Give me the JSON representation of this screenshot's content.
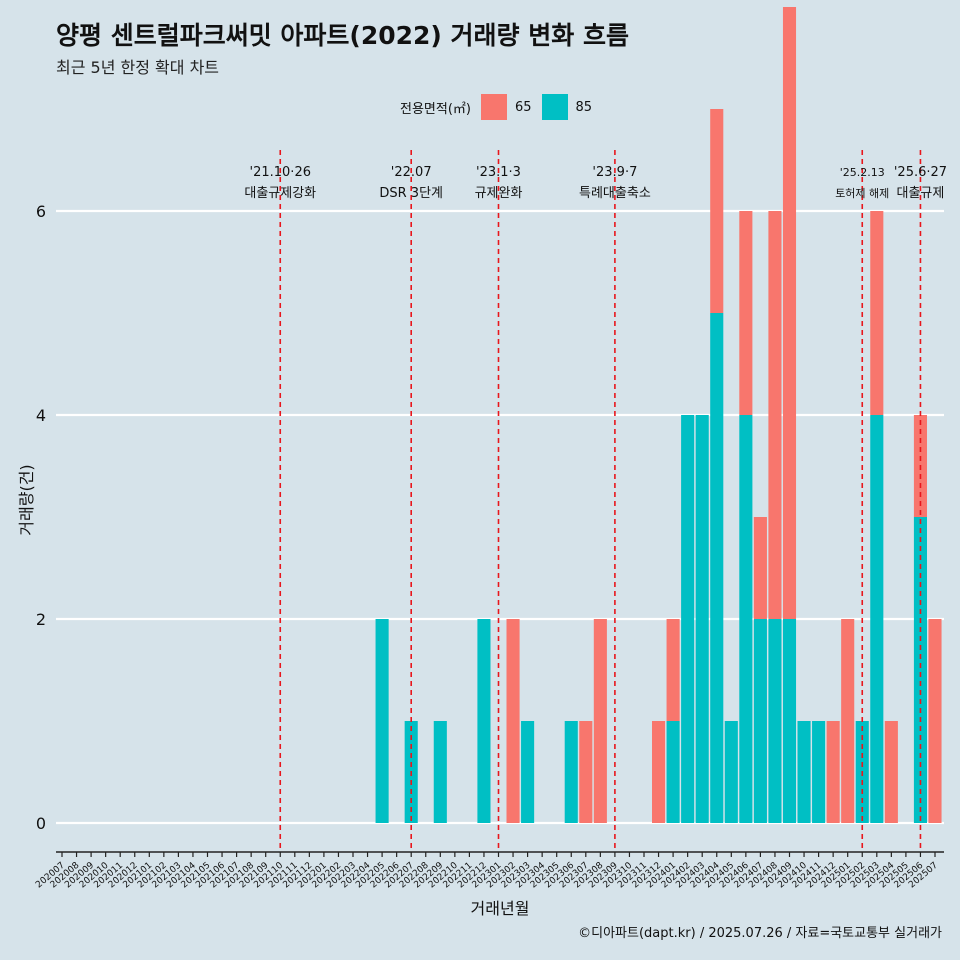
{
  "title": "양평 센트럴파크써밋 아파트(2022) 거래량 변화 흐름",
  "subtitle": "최근 5년 한정 확대 차트",
  "caption": "©디아파트(dapt.kr) / 2025.07.26 / 자료=국토교통부 실거래가",
  "legend": {
    "title": "전용면적(㎡)",
    "items": [
      {
        "name": "65",
        "color": "#f8766d"
      },
      {
        "name": "85",
        "color": "#00bfc4"
      }
    ]
  },
  "chart_data": {
    "type": "bar",
    "xlabel": "거래년월",
    "ylabel": "거래량(건)",
    "ylim": [
      0,
      6
    ],
    "yticks": [
      0,
      2,
      4,
      6
    ],
    "grid": true,
    "categories": [
      "202007",
      "202008",
      "202009",
      "202010",
      "202011",
      "202012",
      "202101",
      "202102",
      "202103",
      "202104",
      "202105",
      "202106",
      "202107",
      "202108",
      "202109",
      "202110",
      "202111",
      "202112",
      "202201",
      "202202",
      "202203",
      "202204",
      "202205",
      "202206",
      "202207",
      "202208",
      "202209",
      "202210",
      "202211",
      "202212",
      "202301",
      "202302",
      "202303",
      "202304",
      "202305",
      "202306",
      "202307",
      "202308",
      "202309",
      "202310",
      "202311",
      "202312",
      "202401",
      "202402",
      "202403",
      "202404",
      "202405",
      "202406",
      "202407",
      "202408",
      "202409",
      "202410",
      "202411",
      "202412",
      "202501",
      "202502",
      "202503",
      "202504",
      "202505",
      "202506",
      "202507"
    ],
    "series": [
      {
        "name": "65",
        "color": "#f8766d",
        "values": [
          0,
          0,
          0,
          0,
          0,
          0,
          0,
          0,
          0,
          0,
          0,
          0,
          0,
          0,
          0,
          0,
          0,
          0,
          0,
          0,
          0,
          0,
          0,
          0,
          0,
          0,
          0,
          0,
          0,
          0,
          0,
          2,
          0,
          0,
          0,
          0,
          1,
          2,
          0,
          0,
          0,
          1,
          1,
          0,
          0,
          2,
          0,
          2,
          1,
          4,
          6,
          0,
          0,
          1,
          2,
          0,
          2,
          1,
          0,
          1,
          2
        ]
      },
      {
        "name": "85",
        "color": "#00bfc4",
        "values": [
          0,
          0,
          0,
          0,
          0,
          0,
          0,
          0,
          0,
          0,
          0,
          0,
          0,
          0,
          0,
          0,
          0,
          0,
          0,
          0,
          0,
          0,
          2,
          0,
          1,
          0,
          1,
          0,
          0,
          2,
          0,
          0,
          1,
          0,
          0,
          1,
          0,
          0,
          0,
          0,
          0,
          0,
          1,
          4,
          4,
          5,
          1,
          4,
          2,
          2,
          2,
          1,
          1,
          0,
          0,
          1,
          4,
          0,
          0,
          3,
          0
        ]
      }
    ],
    "annotations": [
      {
        "x": "202110",
        "date": "'21.10·26",
        "label": "대출규제강화"
      },
      {
        "x": "202207",
        "date": "'22.07",
        "label": "DSR 3단계"
      },
      {
        "x": "202301",
        "date": "'23.1·3",
        "label": "규제완화"
      },
      {
        "x": "202309",
        "date": "'23.9·7",
        "label": "특례대출축소"
      },
      {
        "x": "202502",
        "date": "'25.2.13",
        "label": "토허제 해제"
      },
      {
        "x": "202506",
        "date": "'25.6·27",
        "label": "대출규제"
      }
    ]
  }
}
